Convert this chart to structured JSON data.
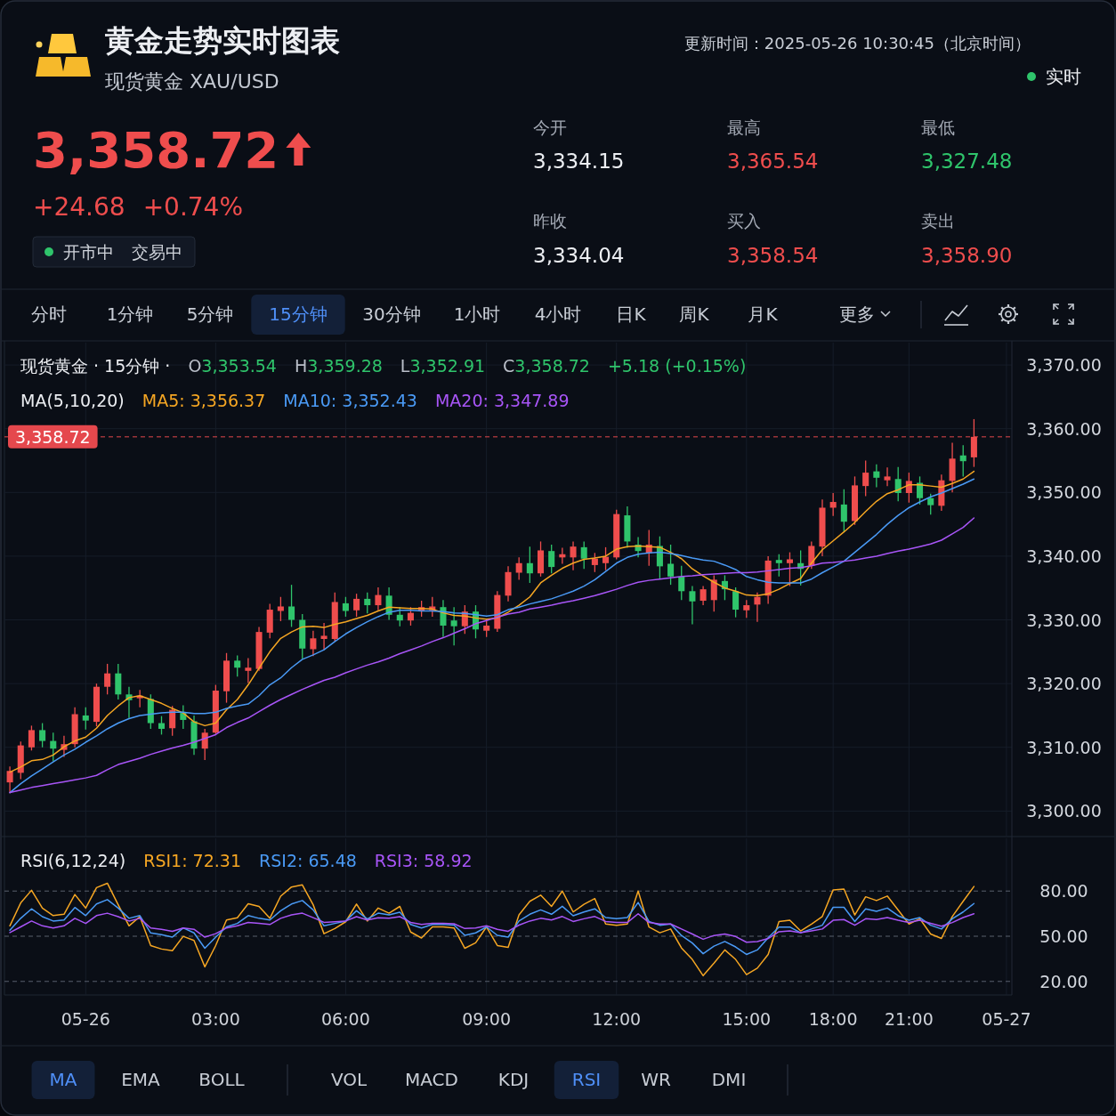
{
  "chart_data": [
    {
      "type": "other",
      "title": "黄金走势实时图表",
      "subtitle": "现货黄金 XAU/USD",
      "annotations": [
        "更新时间：2025-05-26 10:30:45（北京时间）",
        "实时",
        "3,358.72",
        "+24.68",
        "+0.74%",
        "开市中",
        "交易中",
        "今开",
        "3,334.15",
        "最高",
        "3,365.54",
        "最低",
        "3,327.48",
        "昨收",
        "3,334.04",
        "买入",
        "3,358.54",
        "卖出",
        "3,358.90",
        "分时",
        "1分钟",
        "5分钟",
        "15分钟",
        "30分钟",
        "1小时",
        "4小时",
        "日K",
        "周K",
        "月K",
        "更多",
        "MA",
        "EMA",
        "BOLL",
        "VOL",
        "MACD",
        "KDJ",
        "RSI",
        "WR",
        "DMI"
      ]
    },
    {
      "type": "candlestick",
      "categories": [
        null,
        null,
        null,
        null,
        null,
        null,
        null,
        null,
        null,
        null,
        null,
        null,
        null,
        null,
        null,
        null,
        null,
        null,
        null,
        null,
        null,
        null,
        null,
        null,
        null,
        null,
        null,
        null,
        null,
        null,
        null,
        null,
        null,
        null,
        null,
        null,
        null,
        null,
        null,
        null,
        null,
        null,
        null,
        null,
        null,
        null,
        null,
        null,
        null,
        null,
        null,
        null,
        null,
        null,
        null,
        null,
        null,
        null,
        null,
        null,
        null,
        null,
        null,
        null,
        null,
        null,
        null,
        null,
        null,
        null,
        null,
        null,
        null,
        null,
        null,
        null,
        null,
        null,
        null,
        null,
        null,
        null,
        null,
        null,
        null,
        null,
        null,
        null,
        null,
        null,
        null,
        null,
        null
      ],
      "ohlc": [
        [
          3304.5,
          3307.0,
          3302.8,
          3306.3
        ],
        [
          3306.0,
          3310.9,
          3305.0,
          3310.3
        ],
        [
          3310.0,
          3313.4,
          3309.5,
          3312.7
        ],
        [
          3312.7,
          3313.8,
          3310.0,
          3311.0
        ],
        [
          3311.0,
          3312.3,
          3307.8,
          3309.8
        ],
        [
          3309.6,
          3311.8,
          3308.5,
          3310.5
        ],
        [
          3310.5,
          3316.3,
          3310.0,
          3315.2
        ],
        [
          3315.0,
          3316.3,
          3312.8,
          3314.2
        ],
        [
          3314.0,
          3320.0,
          3313.3,
          3319.5
        ],
        [
          3319.5,
          3323.1,
          3318.3,
          3321.6
        ],
        [
          3321.6,
          3323.1,
          3317.5,
          3318.3
        ],
        [
          3318.3,
          3319.5,
          3314.6,
          3317.4
        ],
        [
          3317.7,
          3319.0,
          3316.3,
          3318.1
        ],
        [
          3317.6,
          3318.3,
          3312.9,
          3313.8
        ],
        [
          3313.8,
          3314.9,
          3312.0,
          3312.9
        ],
        [
          3313.0,
          3316.5,
          3311.8,
          3315.9
        ],
        [
          3315.4,
          3316.6,
          3312.9,
          3314.3
        ],
        [
          3314.1,
          3315.0,
          3308.8,
          3309.8
        ],
        [
          3309.8,
          3312.9,
          3308.0,
          3312.3
        ],
        [
          3312.3,
          3319.8,
          3312.1,
          3318.9
        ],
        [
          3318.8,
          3324.8,
          3317.0,
          3323.6
        ],
        [
          3323.6,
          3324.4,
          3321.1,
          3322.5
        ],
        [
          3322.0,
          3324.0,
          3320.1,
          3322.5
        ],
        [
          3322.3,
          3328.9,
          3322.0,
          3328.1
        ],
        [
          3328.0,
          3332.5,
          3327.1,
          3331.6
        ],
        [
          3331.4,
          3333.6,
          3329.8,
          3332.1
        ],
        [
          3332.1,
          3335.5,
          3328.9,
          3330.0
        ],
        [
          3330.0,
          3330.9,
          3323.9,
          3325.5
        ],
        [
          3325.4,
          3328.3,
          3324.3,
          3327.1
        ],
        [
          3327.0,
          3329.5,
          3325.3,
          3327.5
        ],
        [
          3327.0,
          3334.3,
          3326.6,
          3332.8
        ],
        [
          3332.6,
          3333.6,
          3330.5,
          3331.4
        ],
        [
          3331.5,
          3334.1,
          3330.5,
          3333.3
        ],
        [
          3333.3,
          3334.3,
          3331.0,
          3332.3
        ],
        [
          3332.3,
          3335.1,
          3331.5,
          3333.9
        ],
        [
          3333.8,
          3335.1,
          3330.0,
          3330.8
        ],
        [
          3330.8,
          3332.0,
          3329.0,
          3329.9
        ],
        [
          3329.9,
          3332.0,
          3329.1,
          3331.1
        ],
        [
          3331.4,
          3333.0,
          3330.5,
          3332.0
        ],
        [
          3331.5,
          3333.6,
          3330.5,
          3332.1
        ],
        [
          3332.0,
          3333.1,
          3327.3,
          3329.1
        ],
        [
          3329.9,
          3332.0,
          3326.0,
          3329.0
        ],
        [
          3329.0,
          3332.3,
          3327.8,
          3331.3
        ],
        [
          3331.3,
          3332.3,
          3327.1,
          3328.5
        ],
        [
          3328.3,
          3330.1,
          3327.3,
          3329.1
        ],
        [
          3328.6,
          3334.5,
          3328.1,
          3333.9
        ],
        [
          3333.8,
          3338.4,
          3332.9,
          3337.5
        ],
        [
          3337.4,
          3339.8,
          3336.3,
          3338.9
        ],
        [
          3338.9,
          3341.5,
          3335.8,
          3337.3
        ],
        [
          3337.3,
          3342.3,
          3336.8,
          3340.9
        ],
        [
          3340.8,
          3341.8,
          3337.3,
          3338.3
        ],
        [
          3339.8,
          3341.3,
          3338.8,
          3340.3
        ],
        [
          3339.8,
          3342.3,
          3337.8,
          3341.5
        ],
        [
          3341.4,
          3342.3,
          3338.0,
          3339.6
        ],
        [
          3338.6,
          3340.5,
          3337.5,
          3339.6
        ],
        [
          3338.9,
          3341.4,
          3337.8,
          3339.9
        ],
        [
          3339.8,
          3347.3,
          3339.5,
          3346.6
        ],
        [
          3346.4,
          3347.8,
          3341.3,
          3342.3
        ],
        [
          3341.8,
          3343.0,
          3339.8,
          3340.8
        ],
        [
          3340.5,
          3344.1,
          3338.5,
          3341.8
        ],
        [
          3341.6,
          3343.1,
          3336.5,
          3338.4
        ],
        [
          3338.8,
          3341.8,
          3335.5,
          3336.8
        ],
        [
          3336.8,
          3338.5,
          3333.1,
          3334.5
        ],
        [
          3334.5,
          3335.3,
          3329.3,
          3332.9
        ],
        [
          3333.0,
          3335.3,
          3332.3,
          3334.8
        ],
        [
          3333.1,
          3337.0,
          3331.3,
          3336.3
        ],
        [
          3336.1,
          3337.0,
          3333.1,
          3334.8
        ],
        [
          3334.5,
          3335.1,
          3330.4,
          3331.6
        ],
        [
          3331.5,
          3333.1,
          3330.3,
          3332.3
        ],
        [
          3332.4,
          3334.3,
          3329.7,
          3333.6
        ],
        [
          3333.8,
          3340.0,
          3332.5,
          3339.3
        ],
        [
          3339.4,
          3340.3,
          3336.8,
          3338.9
        ],
        [
          3338.9,
          3340.6,
          3335.3,
          3339.5
        ],
        [
          3338.9,
          3340.9,
          3335.4,
          3338.0
        ],
        [
          3338.5,
          3342.3,
          3338.0,
          3341.6
        ],
        [
          3341.5,
          3348.9,
          3340.0,
          3347.6
        ],
        [
          3347.6,
          3349.9,
          3346.3,
          3348.5
        ],
        [
          3348.1,
          3350.5,
          3343.9,
          3345.4
        ],
        [
          3345.5,
          3352.5,
          3344.9,
          3351.1
        ],
        [
          3351.0,
          3355.0,
          3349.4,
          3353.1
        ],
        [
          3353.3,
          3354.4,
          3350.8,
          3352.3
        ],
        [
          3351.9,
          3353.9,
          3351.0,
          3352.5
        ],
        [
          3352.1,
          3354.0,
          3348.6,
          3349.9
        ],
        [
          3349.9,
          3353.1,
          3348.4,
          3351.8
        ],
        [
          3351.5,
          3352.5,
          3348.1,
          3349.1
        ],
        [
          3349.1,
          3349.8,
          3346.5,
          3348.0
        ],
        [
          3347.9,
          3352.8,
          3347.1,
          3351.9
        ],
        [
          3351.8,
          3357.8,
          3350.0,
          3355.3
        ],
        [
          3355.8,
          3357.4,
          3352.5,
          3354.9
        ],
        [
          3355.5,
          3361.5,
          3354.0,
          3358.72
        ],
        null,
        null,
        null
      ],
      "colors": [
        "#ef4d4d",
        "#ef4d4d",
        "#ef4d4d",
        "#2fc46b",
        "#2fc46b",
        "#ef4d4d",
        "#ef4d4d",
        "#2fc46b",
        "#ef4d4d",
        "#ef4d4d",
        "#2fc46b",
        "#2fc46b",
        "#ef4d4d",
        "#2fc46b",
        "#2fc46b",
        "#ef4d4d",
        "#2fc46b",
        "#2fc46b",
        "#ef4d4d",
        "#ef4d4d",
        "#ef4d4d",
        "#2fc46b",
        "#ef4d4d",
        "#ef4d4d",
        "#ef4d4d",
        "#ef4d4d",
        "#2fc46b",
        "#2fc46b",
        "#ef4d4d",
        "#ef4d4d",
        "#ef4d4d",
        "#2fc46b",
        "#ef4d4d",
        "#2fc46b",
        "#ef4d4d",
        "#2fc46b",
        "#2fc46b",
        "#ef4d4d",
        "#ef4d4d",
        "#ef4d4d",
        "#2fc46b",
        "#2fc46b",
        "#ef4d4d",
        "#2fc46b",
        "#ef4d4d",
        "#ef4d4d",
        "#ef4d4d",
        "#ef4d4d",
        "#2fc46b",
        "#ef4d4d",
        "#2fc46b",
        "#ef4d4d",
        "#ef4d4d",
        "#2fc46b",
        "#ef4d4d",
        "#ef4d4d",
        "#ef4d4d",
        "#2fc46b",
        "#2fc46b",
        "#ef4d4d",
        "#2fc46b",
        "#2fc46b",
        "#2fc46b",
        "#2fc46b",
        "#ef4d4d",
        "#ef4d4d",
        "#2fc46b",
        "#2fc46b",
        "#ef4d4d",
        "#ef4d4d",
        "#ef4d4d",
        "#2fc46b",
        "#ef4d4d",
        "#2fc46b",
        "#ef4d4d",
        "#ef4d4d",
        "#ef4d4d",
        "#2fc46b",
        "#ef4d4d",
        "#ef4d4d",
        "#2fc46b",
        "#ef4d4d",
        "#2fc46b",
        "#ef4d4d",
        "#2fc46b",
        "#2fc46b",
        "#ef4d4d",
        "#ef4d4d",
        "#2fc46b",
        "#ef4d4d",
        null,
        null,
        null
      ],
      "series": [
        {
          "name": "MA5: 3,356.37",
          "type": "line",
          "color": "#f5a623",
          "values": [
            3306.1,
            3306.9,
            3307.9,
            3308.1,
            3308.8,
            3310.1,
            3311.0,
            3311.6,
            3313.0,
            3315.0,
            3316.5,
            3317.8,
            3318.1,
            3317.5,
            3316.9,
            3316.1,
            3315.4,
            3314.0,
            3313.4,
            3313.8,
            3315.9,
            3317.5,
            3319.8,
            3322.4,
            3325.0,
            3327.1,
            3328.1,
            3328.9,
            3329.0,
            3328.8,
            3329.3,
            3329.7,
            3330.2,
            3330.7,
            3331.4,
            3332.0,
            3331.9,
            3331.8,
            3331.8,
            3331.7,
            3331.1,
            3330.7,
            3330.6,
            3330.3,
            3330.1,
            3330.3,
            3331.2,
            3332.3,
            3333.6,
            3335.8,
            3337.0,
            3338.1,
            3338.9,
            3339.5,
            3339.7,
            3340.0,
            3341.1,
            3341.5,
            3341.6,
            3341.5,
            3341.4,
            3340.6,
            3339.6,
            3338.0,
            3336.9,
            3335.9,
            3335.0,
            3334.5,
            3333.9,
            3333.8,
            3334.1,
            3334.8,
            3335.7,
            3336.5,
            3338.9,
            3341.0,
            3342.4,
            3343.8,
            3345.3,
            3347.0,
            3348.6,
            3349.8,
            3350.4,
            3351.2,
            3351.2,
            3351.0,
            3350.8,
            3351.4,
            3352.1,
            3353.3,
            null,
            null,
            null
          ]
        },
        {
          "name": "MA10: 3,352.43",
          "type": "line",
          "color": "#4a9af5",
          "values": [
            3302.9,
            3304.3,
            3305.5,
            3306.6,
            3307.7,
            3308.8,
            3309.7,
            3310.8,
            3311.8,
            3312.9,
            3313.8,
            3314.5,
            3315.0,
            3315.2,
            3315.4,
            3315.5,
            3315.5,
            3315.3,
            3315.3,
            3315.5,
            3316.1,
            3316.5,
            3316.8,
            3318.1,
            3319.8,
            3320.9,
            3322.5,
            3323.8,
            3324.5,
            3325.3,
            3326.6,
            3327.8,
            3328.8,
            3329.7,
            3330.5,
            3331.2,
            3331.5,
            3331.5,
            3331.4,
            3331.4,
            3331.3,
            3331.1,
            3331.0,
            3330.8,
            3330.6,
            3330.8,
            3331.6,
            3332.0,
            3332.5,
            3332.9,
            3333.3,
            3333.9,
            3334.5,
            3335.3,
            3336.3,
            3337.6,
            3338.9,
            3339.8,
            3340.3,
            3340.5,
            3340.6,
            3340.4,
            3340.1,
            3339.7,
            3339.4,
            3339.2,
            3338.6,
            3337.9,
            3336.8,
            3336.3,
            3335.9,
            3335.8,
            3335.8,
            3335.8,
            3336.4,
            3337.4,
            3338.3,
            3339.2,
            3340.6,
            3342.0,
            3343.4,
            3345.0,
            3346.4,
            3347.6,
            3348.5,
            3349.3,
            3349.9,
            3350.6,
            3351.3,
            3352.1,
            null,
            null,
            null
          ]
        },
        {
          "name": "MA20: 3,347.89",
          "type": "line",
          "color": "#a855f7",
          "values": [
            3302.9,
            3303.3,
            3303.7,
            3304.0,
            3304.3,
            3304.6,
            3304.9,
            3305.2,
            3305.6,
            3306.5,
            3307.3,
            3307.8,
            3308.3,
            3308.9,
            3309.4,
            3309.9,
            3310.3,
            3310.8,
            3311.4,
            3312.0,
            3313.1,
            3313.9,
            3314.6,
            3315.6,
            3316.6,
            3317.5,
            3318.3,
            3319.1,
            3319.8,
            3320.5,
            3321.0,
            3321.7,
            3322.3,
            3322.9,
            3323.4,
            3324.0,
            3324.7,
            3325.3,
            3325.9,
            3326.6,
            3327.2,
            3327.9,
            3328.6,
            3329.4,
            3329.9,
            3330.4,
            3330.9,
            3331.2,
            3331.7,
            3332.0,
            3332.3,
            3332.7,
            3333.0,
            3333.4,
            3333.8,
            3334.3,
            3334.8,
            3335.4,
            3335.9,
            3336.2,
            3336.4,
            3336.6,
            3336.8,
            3336.9,
            3337.1,
            3337.2,
            3337.3,
            3337.4,
            3337.4,
            3337.5,
            3337.7,
            3337.9,
            3338.1,
            3338.2,
            3338.5,
            3338.9,
            3339.0,
            3339.2,
            3339.4,
            3339.7,
            3340.0,
            3340.4,
            3340.8,
            3341.1,
            3341.5,
            3341.9,
            3342.5,
            3343.5,
            3344.5,
            3346.0,
            null,
            null,
            null
          ]
        }
      ],
      "ylim": [
        3296,
        3373.5
      ],
      "yticks": [
        {
          "value": 3300,
          "label": "3,300.00"
        },
        {
          "value": 3310,
          "label": "3,310.00"
        },
        {
          "value": 3320,
          "label": "3,320.00"
        },
        {
          "value": 3330,
          "label": "3,330.00"
        },
        {
          "value": 3340,
          "label": "3,340.00"
        },
        {
          "value": 3350,
          "label": "3,350.00"
        },
        {
          "value": 3360,
          "label": "3,360.00"
        },
        {
          "value": 3370,
          "label": "3,370.00"
        }
      ],
      "ref_lines": [
        {
          "axis": "y",
          "value": 3358.72,
          "label": "3,358.72",
          "color": "#e5484d",
          "line_style": "dashed"
        }
      ],
      "annotations": [
        "现货黄金 · 15分钟 ·",
        "O3,353.54",
        "H3,359.28",
        "L3,352.91",
        "C3,358.72",
        "+5.18 (+0.15%)"
      ],
      "legend_title": "MA(5,10,20)",
      "legend": "top left",
      "grid": true
    },
    {
      "type": "line",
      "categories": [
        null,
        null,
        null,
        null,
        null,
        null,
        null,
        "05-26",
        null,
        null,
        null,
        null,
        null,
        null,
        null,
        null,
        null,
        null,
        null,
        "03:00",
        null,
        null,
        null,
        null,
        null,
        null,
        null,
        null,
        null,
        null,
        null,
        "06:00",
        null,
        null,
        null,
        null,
        null,
        null,
        null,
        null,
        null,
        null,
        null,
        null,
        "09:00",
        null,
        null,
        null,
        null,
        null,
        null,
        null,
        null,
        null,
        null,
        null,
        "12:00",
        null,
        null,
        null,
        null,
        null,
        null,
        null,
        null,
        null,
        null,
        null,
        "15:00",
        null,
        null,
        null,
        null,
        null,
        null,
        null,
        "18:00",
        null,
        null,
        null,
        null,
        null,
        null,
        "21:00",
        null,
        null,
        null,
        null,
        null,
        null,
        null,
        null,
        "05-27"
      ],
      "series": [
        {
          "name": "RSI1: 72.31",
          "color": "#f5a623",
          "values": [
            56.9,
            72.1,
            80.5,
            68.7,
            63.7,
            64.6,
            77.7,
            68.7,
            82.3,
            85.2,
            70.9,
            56.9,
            63.0,
            43.8,
            41.5,
            40.4,
            49.9,
            47.2,
            29.7,
            43.8,
            60.8,
            62.3,
            71.6,
            69.8,
            61.9,
            76.6,
            82.7,
            84.1,
            70.9,
            51.7,
            55.1,
            59.6,
            71.4,
            60.1,
            68.7,
            65.3,
            69.8,
            52.8,
            48.8,
            56.2,
            56.2,
            55.5,
            42.0,
            45.6,
            56.2,
            43.8,
            42.6,
            64.2,
            73.2,
            77.3,
            69.8,
            80.0,
            66.1,
            71.2,
            75.0,
            58.1,
            57.3,
            58.1,
            80.0,
            56.1,
            52.3,
            54.8,
            42.2,
            34.6,
            23.8,
            32.1,
            40.9,
            34.6,
            24.5,
            28.8,
            37.9,
            59.8,
            60.6,
            53.5,
            58.1,
            63.1,
            80.8,
            81.3,
            64.1,
            76.2,
            73.7,
            76.7,
            67.4,
            58.1,
            61.6,
            51.5,
            48.5,
            63.1,
            73.2,
            83.0,
            null,
            null,
            null
          ]
        },
        {
          "name": "RSI2: 65.48",
          "color": "#4a9af5",
          "values": [
            54.0,
            61.9,
            68.2,
            63.0,
            60.1,
            60.8,
            69.1,
            63.7,
            71.4,
            74.3,
            68.7,
            61.9,
            63.7,
            52.2,
            51.0,
            49.4,
            55.5,
            52.2,
            42.0,
            49.4,
            56.2,
            58.5,
            63.7,
            61.9,
            60.8,
            66.9,
            71.4,
            73.7,
            67.5,
            56.9,
            58.5,
            60.1,
            66.9,
            61.4,
            65.3,
            64.2,
            66.0,
            57.8,
            55.5,
            57.8,
            57.8,
            57.4,
            50.6,
            52.2,
            56.2,
            50.6,
            49.4,
            60.1,
            64.6,
            67.5,
            64.6,
            69.9,
            63.6,
            66.1,
            68.2,
            62.4,
            61.6,
            62.4,
            72.4,
            59.8,
            57.3,
            58.1,
            50.5,
            45.5,
            38.4,
            43.4,
            46.5,
            42.9,
            37.9,
            40.9,
            49.0,
            56.1,
            56.1,
            52.3,
            54.8,
            57.3,
            69.2,
            69.2,
            59.8,
            68.2,
            66.6,
            68.7,
            63.6,
            60.6,
            62.4,
            57.3,
            54.8,
            61.6,
            66.1,
            71.7,
            null,
            null,
            null
          ]
        },
        {
          "name": "RSI3: 58.92",
          "color": "#a855f7",
          "values": [
            52.4,
            56.2,
            60.1,
            56.9,
            55.5,
            56.9,
            61.9,
            58.5,
            63.7,
            65.3,
            63.0,
            60.1,
            61.9,
            55.5,
            54.6,
            53.3,
            55.5,
            54.6,
            49.4,
            51.7,
            55.5,
            56.9,
            59.2,
            58.5,
            57.8,
            61.9,
            64.2,
            65.3,
            62.3,
            59.2,
            59.6,
            60.1,
            63.0,
            60.8,
            62.3,
            61.9,
            63.0,
            59.2,
            57.8,
            58.5,
            58.5,
            58.3,
            55.1,
            55.5,
            56.9,
            54.6,
            53.3,
            57.4,
            60.1,
            61.9,
            60.8,
            63.1,
            59.8,
            61.6,
            63.1,
            59.8,
            59.1,
            59.1,
            64.9,
            59.1,
            58.1,
            58.1,
            54.8,
            51.5,
            48.0,
            50.5,
            51.5,
            49.8,
            46.0,
            46.5,
            48.5,
            53.0,
            53.5,
            52.3,
            53.5,
            54.8,
            60.6,
            61.1,
            57.3,
            61.6,
            61.1,
            62.4,
            60.6,
            59.1,
            60.6,
            58.6,
            56.6,
            59.1,
            62.4,
            64.9,
            null,
            null,
            null
          ]
        }
      ],
      "ylim": [
        11,
        115
      ],
      "yticks": [
        {
          "value": 20,
          "label": "20.00"
        },
        {
          "value": 50,
          "label": "50.00"
        },
        {
          "value": 80,
          "label": "80.00"
        }
      ],
      "ref_lines": [
        {
          "axis": "y",
          "value": 80,
          "color": "#59606d",
          "line_style": "dashed"
        },
        {
          "axis": "y",
          "value": 50,
          "color": "#59606d",
          "line_style": "dashed"
        },
        {
          "axis": "y",
          "value": 20,
          "color": "#59606d",
          "line_style": "dashed"
        }
      ],
      "legend_title": "RSI(6,12,24)",
      "legend": "top left",
      "grid": "x"
    }
  ]
}
